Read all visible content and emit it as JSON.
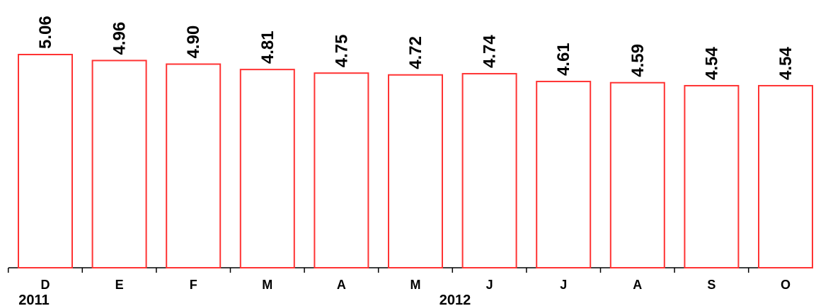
{
  "chart_data": {
    "type": "bar",
    "categories": [
      "D",
      "E",
      "F",
      "M",
      "A",
      "M",
      "J",
      "J",
      "A",
      "S",
      "O"
    ],
    "years": [
      {
        "label": "2011",
        "start_index": 0
      },
      {
        "label": "2012",
        "start_index": 5
      }
    ],
    "values": [
      5.06,
      4.96,
      4.9,
      4.81,
      4.75,
      4.72,
      4.74,
      4.61,
      4.59,
      4.54,
      4.54
    ],
    "value_labels": [
      "5.06",
      "4.96",
      "4.90",
      "4.81",
      "4.75",
      "4.72",
      "4.74",
      "4.61",
      "4.59",
      "4.54",
      "4.54"
    ],
    "title": "",
    "xlabel": "",
    "ylabel": "",
    "ylim": [
      1.5,
      5.06
    ],
    "grid": false,
    "colors": {
      "bar_stroke": "#ff3333",
      "bar_fill": "#ffffff",
      "axis": "#000000"
    }
  }
}
